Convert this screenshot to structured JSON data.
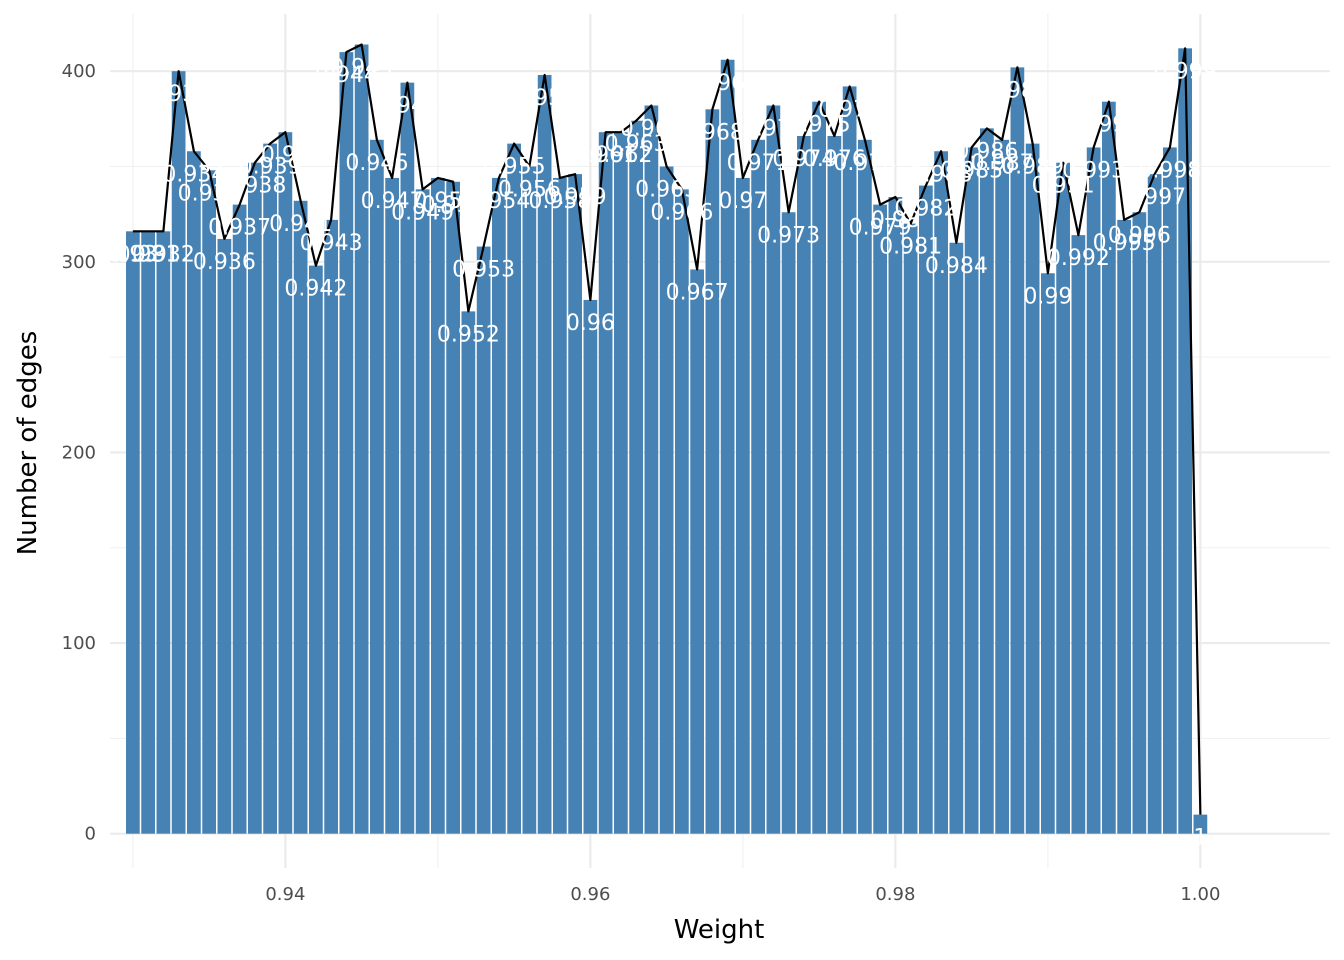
{
  "chart_data": {
    "type": "bar",
    "title": "",
    "xlabel": "Weight",
    "ylabel": "Number of edges",
    "xlim": [
      0.9285,
      1.0085
    ],
    "ylim": [
      -18,
      430
    ],
    "x_ticks": [
      0.94,
      0.96,
      0.98,
      1.0
    ],
    "x_tick_labels": [
      "0.94",
      "0.96",
      "0.98",
      "1.00"
    ],
    "y_ticks": [
      0,
      100,
      200,
      300,
      400
    ],
    "y_tick_labels": [
      "0",
      "100",
      "200",
      "300",
      "400"
    ],
    "grid": true,
    "bar_color": "#4682B4",
    "line_color": "#000000",
    "label_color": "#FFFFFF",
    "x": [
      0.93,
      0.931,
      0.932,
      0.933,
      0.934,
      0.935,
      0.936,
      0.937,
      0.938,
      0.939,
      0.94,
      0.941,
      0.942,
      0.943,
      0.944,
      0.945,
      0.946,
      0.947,
      0.948,
      0.949,
      0.95,
      0.951,
      0.952,
      0.953,
      0.954,
      0.955,
      0.956,
      0.957,
      0.958,
      0.959,
      0.96,
      0.961,
      0.962,
      0.963,
      0.964,
      0.965,
      0.966,
      0.967,
      0.968,
      0.969,
      0.97,
      0.971,
      0.972,
      0.973,
      0.974,
      0.975,
      0.976,
      0.977,
      0.978,
      0.979,
      0.98,
      0.981,
      0.982,
      0.983,
      0.984,
      0.985,
      0.986,
      0.987,
      0.988,
      0.989,
      0.99,
      0.991,
      0.992,
      0.993,
      0.994,
      0.995,
      0.996,
      0.997,
      0.998,
      0.999,
      1.0
    ],
    "values": [
      316,
      316,
      316,
      400,
      358,
      348,
      312,
      330,
      352,
      362,
      368,
      332,
      298,
      322,
      410,
      414,
      364,
      344,
      394,
      338,
      344,
      342,
      274,
      308,
      344,
      362,
      350,
      398,
      344,
      346,
      280,
      368,
      368,
      374,
      382,
      350,
      338,
      296,
      380,
      406,
      344,
      364,
      382,
      326,
      366,
      384,
      366,
      392,
      364,
      330,
      334,
      320,
      340,
      358,
      310,
      360,
      370,
      364,
      402,
      362,
      294,
      352,
      314,
      360,
      384,
      322,
      326,
      346,
      360,
      412,
      10
    ],
    "labels": [
      "0.93",
      "0.931",
      "0.932",
      "0.933",
      "0.934",
      "0.935",
      "0.936",
      "0.937",
      "0.938",
      "0.939",
      "0.94",
      "0.941",
      "0.942",
      "0.943",
      "0.944",
      "0.945",
      "0.946",
      "0.947",
      "0.948",
      "0.949",
      "0.95",
      "0.951",
      "0.952",
      "0.953",
      "0.954",
      "0.955",
      "0.956",
      "0.957",
      "0.958",
      "0.959",
      "0.96",
      "0.961",
      "0.962",
      "0.963",
      "0.964",
      "0.965",
      "0.966",
      "0.967",
      "0.968",
      "0.969",
      "0.97",
      "0.971",
      "0.972",
      "0.973",
      "0.974",
      "0.975",
      "0.976",
      "0.977",
      "0.978",
      "0.979",
      "0.98",
      "0.981",
      "0.982",
      "0.983",
      "0.984",
      "0.985",
      "0.986",
      "0.987",
      "0.988",
      "0.989",
      "0.99",
      "0.991",
      "0.992",
      "0.993",
      "0.994",
      "0.995",
      "0.996",
      "0.997",
      "0.998",
      "0.999",
      "1"
    ]
  }
}
